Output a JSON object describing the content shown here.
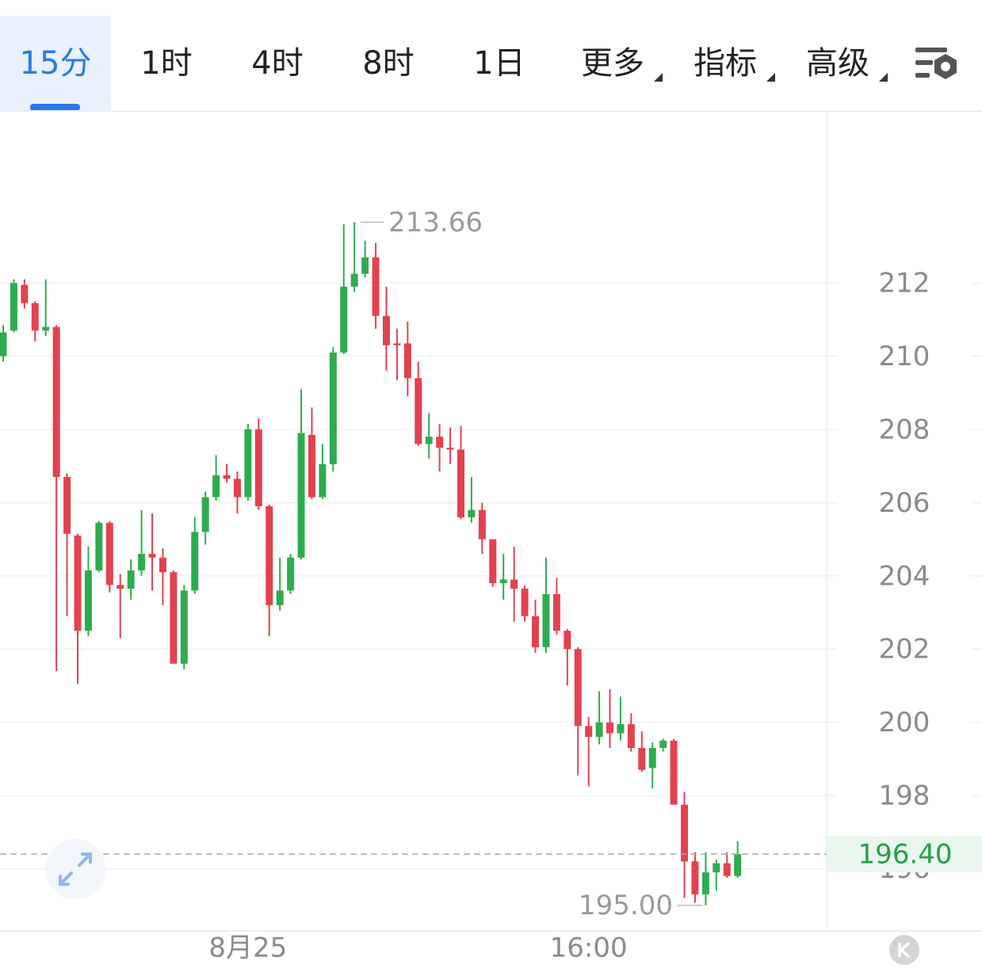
{
  "tabs": [
    "15分",
    "1时",
    "4时",
    "8时",
    "1日",
    "更多",
    "指标",
    "高级"
  ],
  "chart_data": {
    "type": "candlestick",
    "categories": [
      null,
      null,
      null,
      null,
      null,
      null,
      null,
      null,
      null,
      null,
      null,
      null,
      null,
      null,
      null,
      null,
      null,
      null,
      null,
      null,
      null,
      null,
      null,
      "8月25",
      null,
      null,
      null,
      null,
      null,
      null,
      null,
      null,
      null,
      null,
      null,
      null,
      null,
      null,
      null,
      null,
      null,
      null,
      null,
      null,
      null,
      null,
      null,
      null,
      null,
      null,
      null,
      null,
      null,
      null,
      null,
      "16:00",
      null,
      null,
      null,
      null,
      null,
      null,
      null,
      null,
      null,
      null,
      null,
      null,
      null,
      null
    ],
    "series": {
      "open": [
        210.0,
        210.7,
        211.95,
        211.45,
        210.7,
        210.8,
        206.7,
        205.1,
        202.5,
        204.15,
        205.45,
        203.75,
        203.65,
        204.15,
        204.6,
        204.5,
        204.1,
        201.6,
        203.6,
        205.2,
        206.15,
        206.75,
        206.65,
        206.15,
        208.0,
        205.9,
        203.2,
        203.6,
        204.5,
        207.85,
        206.15,
        207.05,
        210.1,
        211.9,
        212.25,
        212.7,
        211.1,
        210.35,
        210.35,
        209.4,
        207.6,
        207.8,
        207.5,
        207.45,
        205.6,
        205.8,
        205.0,
        203.8,
        203.9,
        203.65,
        202.9,
        202.05,
        203.5,
        202.5,
        202.0,
        199.9,
        199.6,
        200.0,
        199.7,
        199.95,
        199.3,
        198.75,
        199.3,
        199.5,
        197.75,
        196.2,
        195.3,
        195.9,
        196.15,
        195.8
      ],
      "high": [
        210.85,
        212.1,
        212.1,
        211.5,
        212.1,
        210.85,
        206.8,
        205.15,
        204.8,
        205.5,
        205.5,
        204.05,
        204.45,
        205.8,
        205.7,
        204.75,
        204.15,
        203.75,
        205.6,
        206.3,
        207.3,
        207.05,
        206.85,
        208.15,
        208.3,
        205.95,
        204.5,
        204.6,
        209.1,
        208.6,
        207.6,
        210.25,
        213.6,
        213.66,
        213.15,
        213.1,
        211.9,
        210.75,
        210.95,
        209.85,
        208.45,
        208.15,
        208.05,
        208.1,
        206.7,
        206.0,
        205.0,
        204.6,
        204.8,
        203.75,
        203.35,
        204.5,
        203.95,
        202.55,
        202.05,
        200.15,
        200.85,
        200.9,
        200.7,
        200.25,
        199.75,
        199.45,
        199.55,
        199.55,
        198.1,
        196.45,
        196.45,
        196.25,
        196.45,
        196.75
      ],
      "low": [
        209.85,
        210.65,
        211.3,
        210.4,
        210.55,
        201.4,
        202.9,
        201.05,
        202.35,
        204.1,
        203.55,
        202.3,
        203.35,
        204.0,
        203.6,
        203.2,
        201.6,
        201.45,
        203.5,
        204.85,
        206.05,
        206.55,
        205.7,
        206.05,
        205.8,
        202.35,
        203.05,
        203.5,
        204.45,
        206.1,
        206.1,
        206.85,
        210.05,
        211.75,
        212.15,
        210.75,
        209.6,
        209.35,
        208.9,
        207.55,
        207.2,
        206.85,
        207.05,
        205.55,
        205.45,
        204.6,
        203.7,
        203.35,
        202.75,
        202.75,
        201.9,
        201.9,
        202.4,
        201.0,
        198.55,
        198.25,
        199.4,
        199.3,
        199.5,
        199.2,
        198.65,
        198.2,
        199.2,
        197.75,
        195.2,
        195.07,
        195.0,
        195.4,
        195.75,
        195.75
      ],
      "close": [
        210.65,
        212.0,
        211.45,
        210.7,
        210.8,
        206.7,
        205.15,
        202.5,
        204.15,
        205.45,
        203.75,
        203.65,
        204.15,
        204.6,
        204.5,
        204.1,
        201.6,
        203.6,
        205.2,
        206.15,
        206.75,
        206.65,
        206.15,
        208.0,
        205.9,
        203.2,
        203.6,
        204.5,
        207.9,
        206.15,
        207.05,
        210.1,
        211.9,
        212.25,
        212.7,
        211.1,
        210.3,
        210.3,
        209.4,
        207.6,
        207.8,
        207.5,
        207.45,
        205.6,
        205.8,
        205.0,
        203.8,
        203.9,
        203.65,
        202.9,
        202.05,
        203.5,
        202.5,
        202.0,
        199.9,
        199.6,
        200.0,
        199.7,
        199.95,
        199.3,
        198.7,
        199.3,
        199.5,
        197.75,
        196.2,
        195.3,
        195.9,
        196.15,
        195.8,
        196.4
      ]
    },
    "up_color": "#2fab4f",
    "down_color": "#e2424f",
    "ylim": [
      194.3,
      216.7
    ],
    "yticks": [
      196,
      198,
      200,
      202,
      204,
      206,
      208,
      210,
      212
    ],
    "grid": true,
    "max_label": {
      "value": 213.66
    },
    "min_label": {
      "value": 195,
      "label": "195.00"
    },
    "last_price": {
      "value": 196.4,
      "label": "196.40"
    }
  }
}
